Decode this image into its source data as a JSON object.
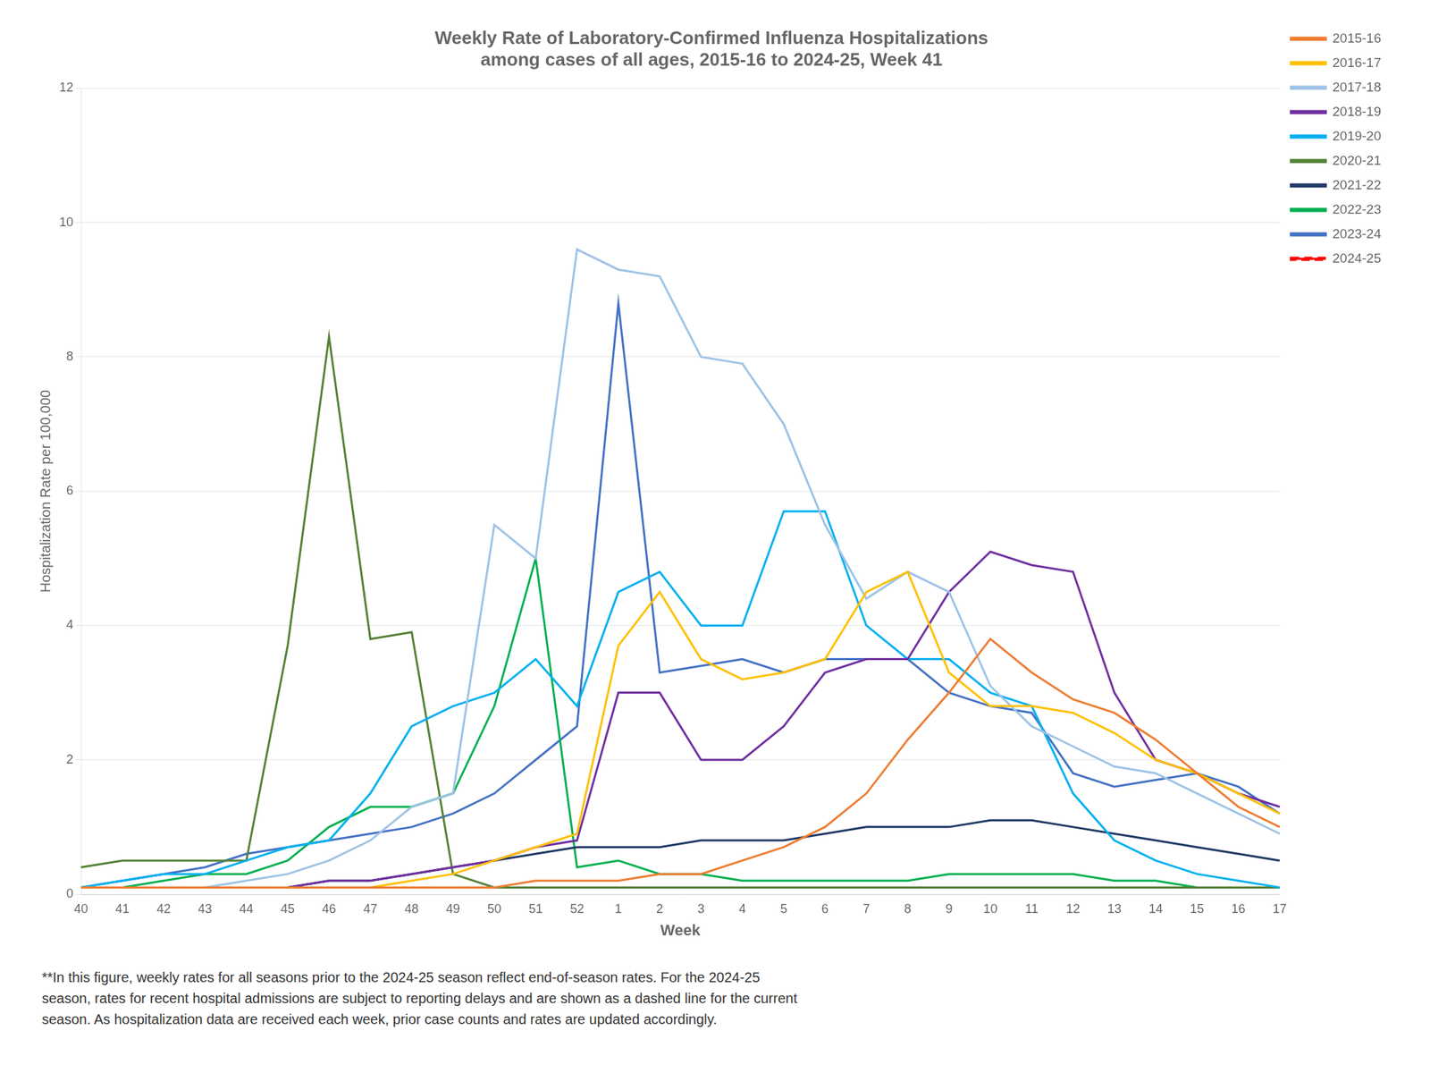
{
  "chart_data": {
    "type": "line",
    "title": "Weekly Rate of Laboratory-Confirmed Influenza Hospitalizations\namong cases of all ages, 2015-16 to 2024-25, Week 41",
    "x_label": "Week",
    "y_label": "Hospitalization Rate per 100,000",
    "annotations": [
      "**In this figure, weekly rates for all seasons prior to the 2024-25 season reflect end-of-season rates. For the 2024-25\nseason, rates for recent hospital admissions are subject to reporting delays and are shown as a dashed line for the current\nseason. As hospitalization data are received each week, prior case counts and rates are updated accordingly."
    ],
    "categories": [
      "40",
      "41",
      "42",
      "43",
      "44",
      "45",
      "46",
      "47",
      "48",
      "49",
      "50",
      "51",
      "52",
      "1",
      "2",
      "3",
      "4",
      "5",
      "6",
      "7",
      "8",
      "9",
      "10",
      "11",
      "12",
      "13",
      "14",
      "15",
      "16",
      "17"
    ],
    "ylim": [
      0,
      12
    ],
    "yticks": [
      0,
      2,
      4,
      6,
      8,
      10,
      12
    ],
    "grid": "y",
    "legend": "upper right",
    "series": [
      {
        "name": "2015-16",
        "color": "#ED7D31",
        "line_style": "solid",
        "values": [
          0.1,
          0.1,
          0.1,
          0.1,
          0.1,
          0.1,
          0.1,
          0.1,
          0.1,
          0.1,
          0.1,
          0.2,
          0.2,
          0.2,
          0.3,
          0.3,
          0.5,
          0.7,
          1.0,
          1.5,
          2.3,
          3.0,
          3.8,
          3.3,
          2.9,
          2.7,
          2.3,
          1.8,
          1.3,
          1.0
        ]
      },
      {
        "name": "2016-17",
        "color": "#FFC000",
        "line_style": "solid",
        "values": [
          0.1,
          0.1,
          0.1,
          0.1,
          0.1,
          0.1,
          0.1,
          0.1,
          0.2,
          0.3,
          0.5,
          0.7,
          0.9,
          3.7,
          4.5,
          3.5,
          3.2,
          3.3,
          3.5,
          4.5,
          4.8,
          3.3,
          2.8,
          2.8,
          2.7,
          2.4,
          2.0,
          1.8,
          1.5,
          1.2
        ]
      },
      {
        "name": "2017-18",
        "color": "#9DC3E6",
        "line_style": "solid",
        "values": [
          0.1,
          0.1,
          0.1,
          0.1,
          0.2,
          0.3,
          0.5,
          0.8,
          1.3,
          1.5,
          5.5,
          5.0,
          9.6,
          9.3,
          9.2,
          8.0,
          7.9,
          7.0,
          5.5,
          4.4,
          4.8,
          4.5,
          3.1,
          2.5,
          2.2,
          1.9,
          1.8,
          1.5,
          1.2,
          0.9
        ]
      },
      {
        "name": "2018-19",
        "color": "#7030A0",
        "line_style": "solid",
        "values": [
          0.1,
          0.1,
          0.1,
          0.1,
          0.1,
          0.1,
          0.2,
          0.2,
          0.3,
          0.4,
          0.5,
          0.7,
          0.8,
          3.0,
          3.0,
          2.0,
          2.0,
          2.5,
          3.3,
          3.5,
          3.5,
          4.5,
          5.1,
          4.9,
          4.8,
          3.0,
          2.0,
          1.8,
          1.5,
          1.3
        ]
      },
      {
        "name": "2019-20",
        "color": "#00B0F0",
        "line_style": "solid",
        "values": [
          0.1,
          0.2,
          0.3,
          0.3,
          0.5,
          0.7,
          0.8,
          1.5,
          2.5,
          2.8,
          3.0,
          3.5,
          2.8,
          4.5,
          4.8,
          4.0,
          4.0,
          5.7,
          5.7,
          4.0,
          3.5,
          3.5,
          3.0,
          2.8,
          1.5,
          0.8,
          0.5,
          0.3,
          0.2,
          0.1
        ]
      },
      {
        "name": "2020-21",
        "color": "#548235",
        "line_style": "solid",
        "values": [
          0.4,
          0.5,
          0.5,
          0.5,
          0.5,
          3.7,
          8.3,
          3.8,
          3.9,
          0.3,
          0.1,
          0.1,
          0.1,
          0.1,
          0.1,
          0.1,
          0.1,
          0.1,
          0.1,
          0.1,
          0.1,
          0.1,
          0.1,
          0.1,
          0.1,
          0.1,
          0.1,
          0.1,
          0.1,
          0.1
        ]
      },
      {
        "name": "2021-22",
        "color": "#1F3864",
        "line_style": "solid",
        "values": [
          0.1,
          0.1,
          0.1,
          0.1,
          0.1,
          0.1,
          0.2,
          0.2,
          0.3,
          0.4,
          0.5,
          0.6,
          0.7,
          0.7,
          0.7,
          0.8,
          0.8,
          0.8,
          0.9,
          1.0,
          1.0,
          1.0,
          1.1,
          1.1,
          1.0,
          0.9,
          0.8,
          0.7,
          0.6,
          0.5
        ]
      },
      {
        "name": "2022-23",
        "color": "#00B050",
        "line_style": "solid",
        "values": [
          0.1,
          0.1,
          0.2,
          0.3,
          0.3,
          0.5,
          1.0,
          1.3,
          1.3,
          1.5,
          2.8,
          5.0,
          0.4,
          0.5,
          0.3,
          0.3,
          0.2,
          0.2,
          0.2,
          0.2,
          0.2,
          0.3,
          0.3,
          0.3,
          0.3,
          0.2,
          0.2,
          0.1,
          0.1,
          0.1
        ]
      },
      {
        "name": "2023-24",
        "color": "#4472C4",
        "line_style": "solid",
        "values": [
          0.1,
          0.2,
          0.3,
          0.4,
          0.6,
          0.7,
          0.8,
          0.9,
          1.0,
          1.2,
          1.5,
          2.0,
          2.5,
          8.8,
          3.3,
          3.4,
          3.5,
          3.3,
          3.5,
          3.5,
          3.5,
          3.0,
          2.8,
          2.7,
          1.8,
          1.6,
          1.7,
          1.8,
          1.6,
          1.2
        ]
      },
      {
        "name": "2024-25",
        "color": "#FF0000",
        "line_style": "dashed",
        "values": [
          0.1,
          0.1,
          null,
          null,
          null,
          null,
          null,
          null,
          null,
          null,
          null,
          null,
          null,
          null,
          null,
          null,
          null,
          null,
          null,
          null,
          null,
          null,
          null,
          null,
          null,
          null,
          null,
          null,
          null,
          null
        ]
      }
    ]
  }
}
